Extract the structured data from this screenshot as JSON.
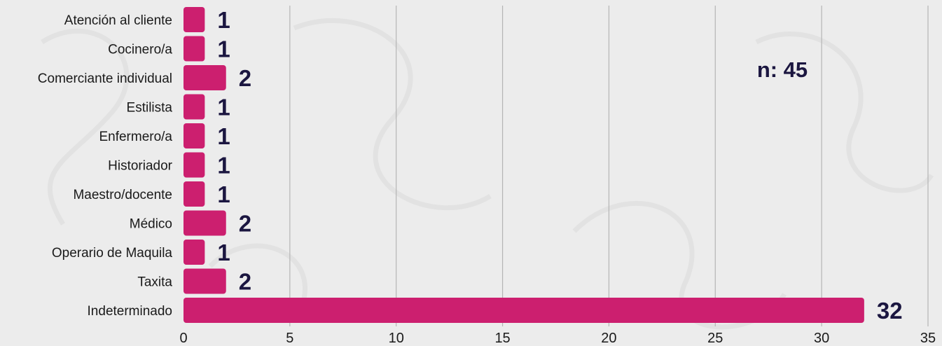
{
  "chart_data": {
    "type": "bar",
    "orientation": "horizontal",
    "categories": [
      "Atención al cliente",
      "Cocinero/a",
      "Comerciante individual",
      "Estilista",
      "Enfermero/a",
      "Historiador",
      "Maestro/docente",
      "Médico",
      "Operario de Maquila",
      "Taxita",
      "Indeterminado"
    ],
    "values": [
      1,
      1,
      2,
      1,
      1,
      1,
      1,
      2,
      1,
      2,
      32
    ],
    "xlim": [
      0,
      35
    ],
    "xticks": [
      0,
      5,
      10,
      15,
      20,
      25,
      30,
      35
    ],
    "grid": true,
    "annotation": "n: 45",
    "title": "",
    "xlabel": "",
    "ylabel": "",
    "bar_color": "#cc1f6f",
    "label_color": "#1b1640",
    "background_color": "#ececec"
  }
}
